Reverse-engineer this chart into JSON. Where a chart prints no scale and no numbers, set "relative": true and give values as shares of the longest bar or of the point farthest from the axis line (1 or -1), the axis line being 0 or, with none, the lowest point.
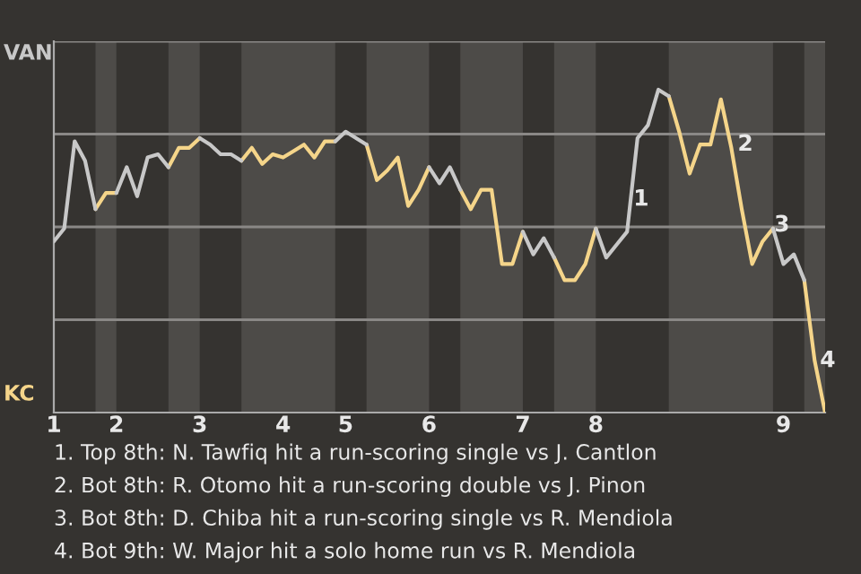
{
  "chart_data": {
    "type": "line",
    "relative": true,
    "categories": [
      "1",
      null,
      null,
      null,
      null,
      null,
      "2",
      null,
      null,
      null,
      null,
      null,
      null,
      null,
      "3",
      null,
      null,
      null,
      null,
      null,
      null,
      null,
      "4",
      null,
      null,
      null,
      null,
      null,
      "5",
      null,
      null,
      null,
      null,
      null,
      null,
      null,
      "6",
      null,
      null,
      null,
      null,
      null,
      null,
      null,
      null,
      "7",
      null,
      null,
      null,
      null,
      null,
      null,
      "8",
      null,
      null,
      null,
      null,
      null,
      null,
      null,
      null,
      null,
      null,
      null,
      null,
      null,
      null,
      null,
      null,
      null,
      "9",
      null,
      null,
      null,
      null
    ],
    "series": [
      {
        "color": "#c8c8c8",
        "values": [
          0.53,
          0.57,
          0.84,
          0.78,
          0.63,
          null,
          0.68,
          0.76,
          0.67,
          0.79,
          0.8,
          0.76,
          null,
          null,
          0.85,
          0.83,
          0.8,
          0.8,
          0.78,
          null,
          null,
          null,
          null,
          null,
          null,
          null,
          null,
          0.84,
          0.87,
          0.85,
          0.83,
          null,
          null,
          null,
          null,
          null,
          0.76,
          0.71,
          0.76,
          0.69,
          null,
          null,
          null,
          null,
          null,
          0.56,
          0.49,
          0.54,
          0.48,
          null,
          null,
          null,
          0.57,
          0.48,
          0.52,
          0.56,
          0.85,
          0.89,
          1,
          0.98,
          null,
          null,
          null,
          null,
          null,
          null,
          null,
          null,
          null,
          0.57,
          0.46,
          0.49,
          0.41,
          null,
          null
        ]
      },
      {
        "color": "#f5d58a",
        "values": [
          null,
          null,
          null,
          null,
          0.63,
          0.68,
          0.68,
          null,
          null,
          null,
          null,
          0.76,
          0.82,
          0.82,
          0.85,
          null,
          null,
          null,
          0.78,
          0.82,
          0.77,
          0.8,
          0.79,
          0.81,
          0.83,
          0.79,
          0.84,
          0.84,
          null,
          null,
          0.83,
          0.72,
          0.75,
          0.79,
          0.64,
          0.69,
          0.76,
          null,
          null,
          0.69,
          0.63,
          0.69,
          0.69,
          0.46,
          0.46,
          0.56,
          null,
          null,
          0.48,
          0.41,
          0.41,
          0.46,
          0.57,
          null,
          null,
          null,
          null,
          null,
          null,
          0.98,
          0.87,
          0.74,
          0.83,
          0.83,
          0.97,
          0.82,
          0.63,
          0.46,
          0.53,
          0.57,
          null,
          null,
          0.41,
          0.16,
          0
        ]
      }
    ],
    "grid": "y",
    "annotations": [
      "VAN",
      "KC",
      "1",
      "2",
      "3",
      "4",
      "1. Top 8th: N. Tawfiq hit a run-scoring single vs J. Cantlon",
      "2. Bot 8th: R. Otomo hit a run-scoring double vs J. Pinon",
      "3. Bot 8th: D. Chiba hit a run-scoring single vs R. Mendiola",
      "4. Bot 9th: W. Major hit a solo home run vs R. Mendiola"
    ]
  }
}
